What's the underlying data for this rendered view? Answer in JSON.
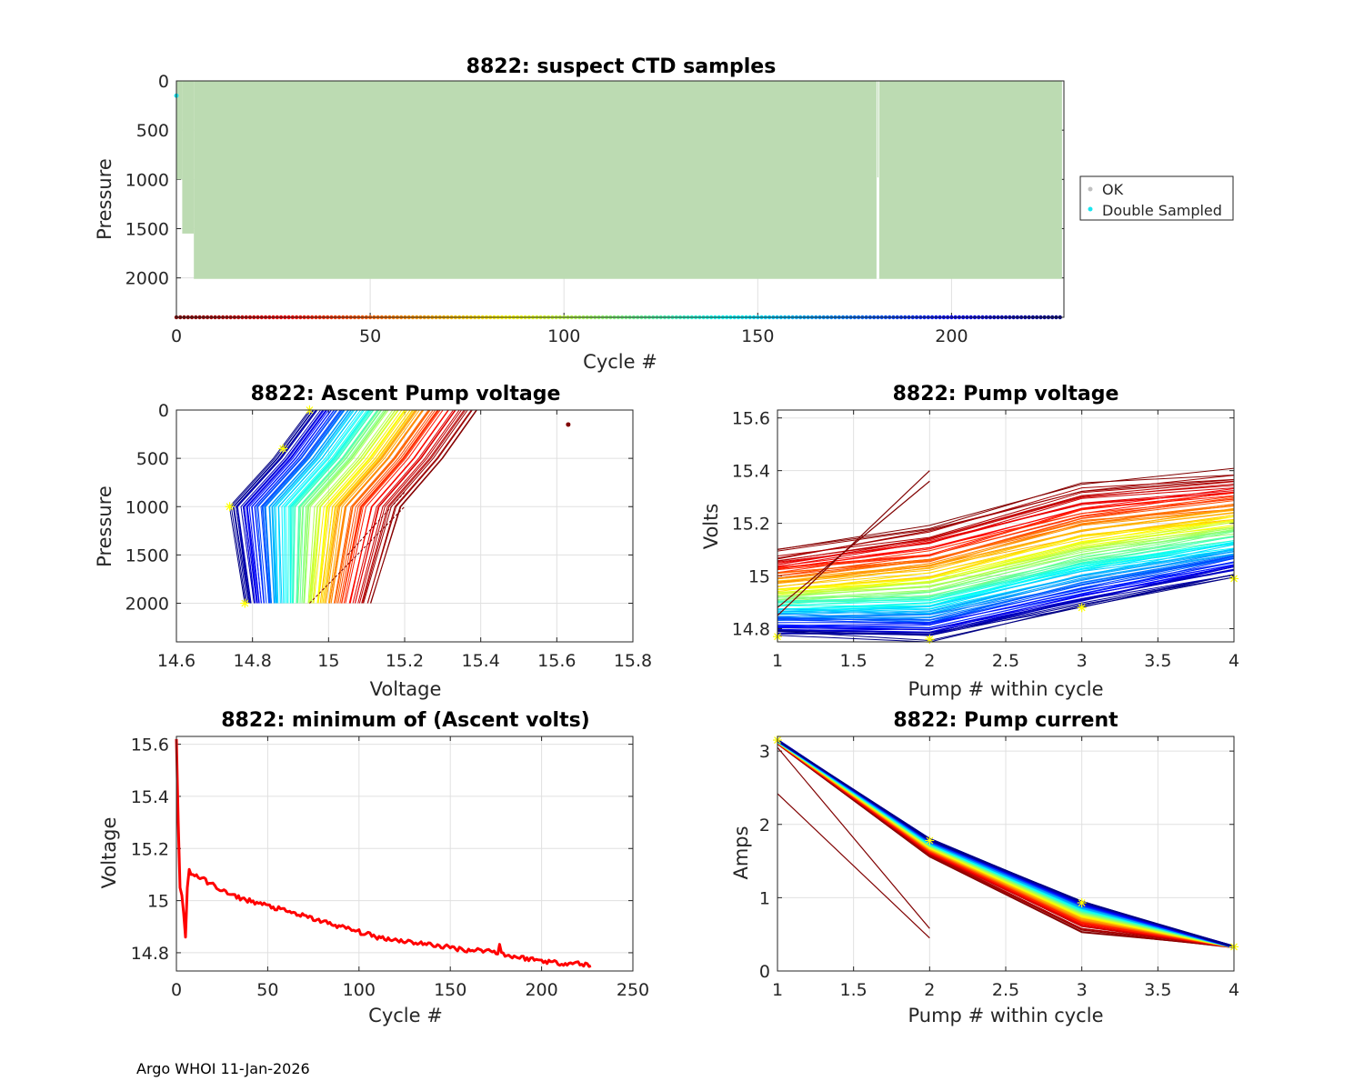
{
  "footer": "Argo WHOI 11-Jan-2026",
  "colors": {
    "bulk": "#bcdbb2",
    "ok": "#c0c0c0",
    "double": "#19e6f0",
    "minline": "#ff0000",
    "marker": "#ffff00",
    "grid": "#e0e0e0",
    "axis": "#262626"
  },
  "chart_data": [
    {
      "id": "suspect",
      "type": "scatter",
      "title": "8822: suspect CTD samples",
      "xlabel": "Cycle #",
      "ylabel": "Pressure",
      "xlim": [
        0,
        229
      ],
      "ylim": [
        0,
        2400
      ],
      "y_reversed": true,
      "xticks": [
        "0",
        "50",
        "100",
        "150",
        "200"
      ],
      "xtick_values": [
        0,
        50,
        100,
        150,
        200
      ],
      "yticks": [
        "0",
        "500",
        "1000",
        "1500",
        "2000"
      ],
      "ytick_values": [
        0,
        500,
        1000,
        1500,
        2000
      ],
      "legend": {
        "position": "right",
        "entries": [
          {
            "label": "OK",
            "color": "#c0c0c0"
          },
          {
            "label": "Double Sampled",
            "color": "#19e6f0"
          }
        ]
      },
      "profile_depths": [
        {
          "cycles": [
            0,
            1
          ],
          "max_pressure": 1000
        },
        {
          "cycles": [
            2,
            4
          ],
          "max_pressure": 1550
        },
        {
          "cycles": [
            5,
            228
          ],
          "max_pressure": 2010
        }
      ],
      "missing_cycle": 181,
      "missing_cycle_max_pressure": 980,
      "double_sampled": [
        {
          "cycle": 0,
          "pressure": 150
        }
      ],
      "bottom_cycle_markers": {
        "pressure": 2400,
        "cycle_range": [
          0,
          228
        ]
      }
    },
    {
      "id": "ascent",
      "type": "line",
      "title": "8822: Ascent Pump voltage",
      "xlabel": "Voltage",
      "ylabel": "Pressure",
      "xlim": [
        14.6,
        15.8
      ],
      "ylim": [
        0,
        2400
      ],
      "y_reversed": true,
      "xticks": [
        "14.6",
        "14.8",
        "15",
        "15.2",
        "15.4",
        "15.6",
        "15.8"
      ],
      "xtick_values": [
        14.6,
        14.8,
        15.0,
        15.2,
        15.4,
        15.6,
        15.8
      ],
      "yticks": [
        "0",
        "500",
        "1000",
        "1500",
        "2000"
      ],
      "ytick_values": [
        0,
        500,
        1000,
        1500,
        2000
      ],
      "series_description": "one profile per cycle, colored by cycle (dark red = early, dark blue = late)",
      "earliest_profile": {
        "voltage_at_2000": 15.12,
        "voltage_at_1000": 15.2,
        "voltage_at_0": 15.4
      },
      "latest_profile": {
        "voltage_at_2000": 14.78,
        "voltage_at_1000": 14.74,
        "voltage_at_0": 14.95
      },
      "outlier": {
        "voltage": 15.63,
        "pressure": 150
      },
      "markers": [
        {
          "voltage": 14.78,
          "pressure": 2000
        },
        {
          "voltage": 14.74,
          "pressure": 1000
        },
        {
          "voltage": 14.88,
          "pressure": 400
        },
        {
          "voltage": 14.95,
          "pressure": 0
        }
      ]
    },
    {
      "id": "pumpvolt",
      "type": "line",
      "title": "8822: Pump voltage",
      "xlabel": "Pump # within cycle",
      "ylabel": "Volts",
      "xlim": [
        1,
        4
      ],
      "ylim": [
        14.75,
        15.63
      ],
      "xticks": [
        "1",
        "1.5",
        "2",
        "2.5",
        "3",
        "3.5",
        "4"
      ],
      "xtick_values": [
        1,
        1.5,
        2,
        2.5,
        3,
        3.5,
        4
      ],
      "yticks": [
        "14.8",
        "15",
        "15.2",
        "15.4",
        "15.6"
      ],
      "ytick_values": [
        14.8,
        15.0,
        15.2,
        15.4,
        15.6
      ],
      "series_description": "4 pumps per cycle, colored by cycle (dark red = early, dark blue = late)",
      "earliest_cycle": [
        15.1,
        15.2,
        15.36,
        15.4
      ],
      "latest_cycle": [
        14.78,
        14.76,
        14.88,
        15.0
      ],
      "anomalous": [
        {
          "x": [
            1,
            2
          ],
          "y": [
            14.85,
            15.4
          ]
        },
        {
          "x": [
            1,
            2
          ],
          "y": [
            14.88,
            15.36
          ]
        }
      ],
      "markers": [
        {
          "x": 1,
          "y": 14.77
        },
        {
          "x": 2,
          "y": 14.76
        },
        {
          "x": 3,
          "y": 14.88
        },
        {
          "x": 4,
          "y": 14.99
        }
      ]
    },
    {
      "id": "minvolts",
      "type": "line",
      "title": "8822: minimum of (Ascent volts)",
      "xlabel": "Cycle #",
      "ylabel": "Voltage",
      "xlim": [
        0,
        250
      ],
      "ylim": [
        14.73,
        15.63
      ],
      "xticks": [
        "0",
        "50",
        "100",
        "150",
        "200",
        "250"
      ],
      "xtick_values": [
        0,
        50,
        100,
        150,
        200,
        250
      ],
      "yticks": [
        "14.8",
        "15",
        "15.2",
        "15.4",
        "15.6"
      ],
      "ytick_values": [
        14.8,
        15.0,
        15.2,
        15.4,
        15.6
      ],
      "x": [
        0,
        1,
        2,
        3,
        4,
        5,
        6,
        7,
        8,
        10,
        15,
        20,
        30,
        40,
        50,
        60,
        75,
        90,
        100,
        110,
        120,
        130,
        140,
        150,
        160,
        170,
        176,
        177,
        178,
        180,
        190,
        200,
        210,
        220,
        227
      ],
      "y": [
        15.62,
        15.3,
        15.05,
        15.02,
        14.95,
        14.86,
        15.05,
        15.12,
        15.1,
        15.1,
        15.08,
        15.06,
        15.02,
        15.0,
        14.98,
        14.96,
        14.93,
        14.9,
        14.88,
        14.86,
        14.85,
        14.84,
        14.83,
        14.82,
        14.81,
        14.81,
        14.8,
        14.84,
        14.8,
        14.79,
        14.78,
        14.77,
        14.76,
        14.76,
        14.75
      ]
    },
    {
      "id": "current",
      "type": "line",
      "title": "8822: Pump current",
      "xlabel": "Pump # within cycle",
      "ylabel": "Amps",
      "xlim": [
        1,
        4
      ],
      "ylim": [
        0,
        3.2
      ],
      "xticks": [
        "1",
        "1.5",
        "2",
        "2.5",
        "3",
        "3.5",
        "4"
      ],
      "xtick_values": [
        1,
        1.5,
        2,
        2.5,
        3,
        3.5,
        4
      ],
      "yticks": [
        "0",
        "1",
        "2",
        "3"
      ],
      "ytick_values": [
        0,
        1,
        2,
        3
      ],
      "series_description": "4 pumps per cycle, colored by cycle (dark red = early, dark blue = late)",
      "earliest_cycle": [
        3.1,
        1.55,
        0.52,
        0.33
      ],
      "latest_cycle": [
        3.15,
        1.8,
        0.95,
        0.33
      ],
      "anomalous": [
        {
          "x": [
            1,
            2
          ],
          "y": [
            2.42,
            0.45
          ]
        },
        {
          "x": [
            1,
            2
          ],
          "y": [
            3.05,
            0.58
          ]
        }
      ],
      "markers": [
        {
          "x": 1,
          "y": 3.15
        },
        {
          "x": 2,
          "y": 1.78
        },
        {
          "x": 3,
          "y": 0.93
        },
        {
          "x": 4,
          "y": 0.33
        }
      ]
    }
  ]
}
